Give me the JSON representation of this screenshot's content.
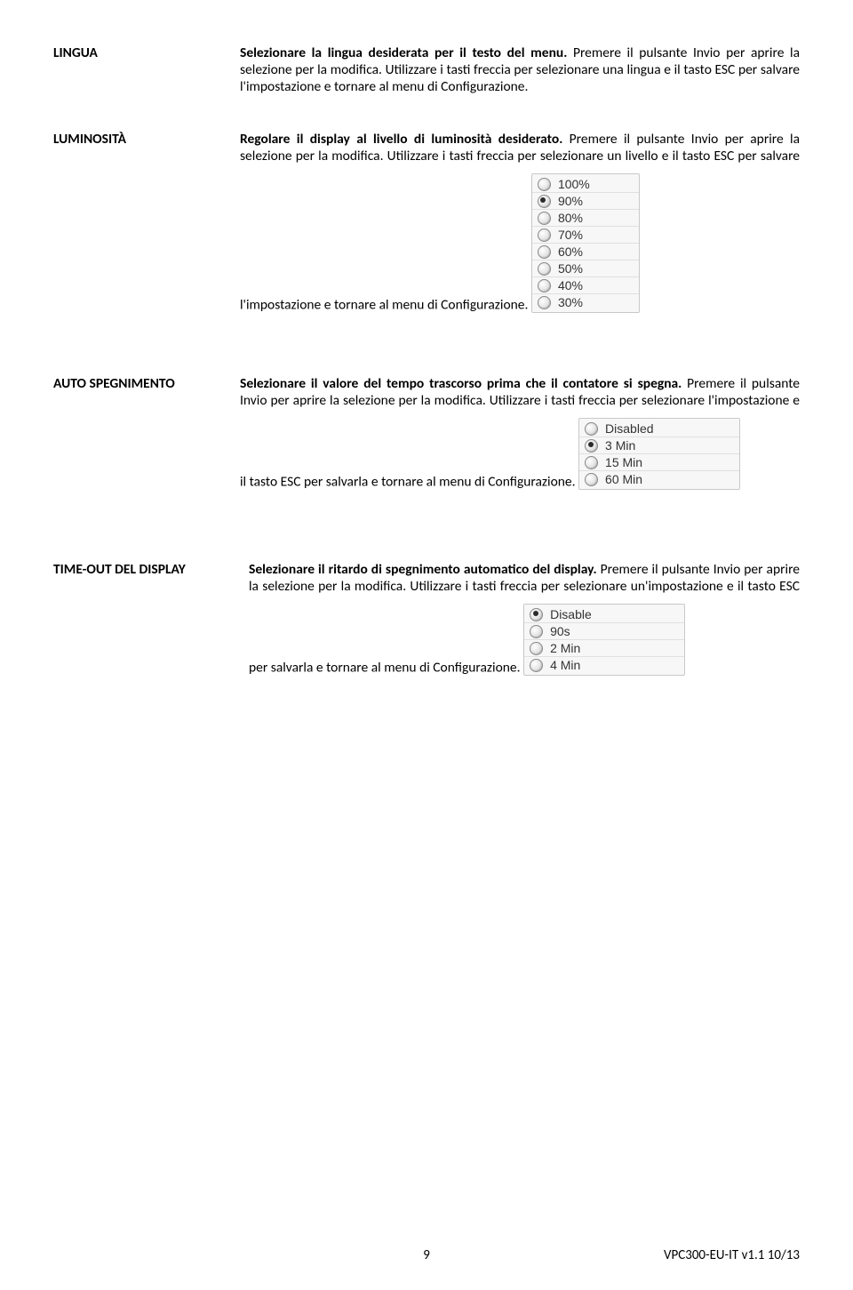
{
  "lingua": {
    "label": "LINGUA",
    "lead": "Selezionare la lingua desiderata per il testo del menu.",
    "rest": " Premere il pulsante Invio per aprire la selezione per la modifica. Utilizzare i tasti freccia per selezionare una lingua e il tasto ESC per salvare l'impostazione e tornare al menu di Configurazione."
  },
  "luminosita": {
    "label": "LUMINOSITÀ",
    "lead": "Regolare il display al livello di luminosità desiderato.",
    "rest": " Premere il pulsante Invio per aprire la selezione per la modifica. Utilizzare i tasti freccia per selezionare un livello e il tasto ESC per salvare l'impostazione e tornare al menu di Configurazione.",
    "options": [
      {
        "label": "100%",
        "selected": false
      },
      {
        "label": "90%",
        "selected": true
      },
      {
        "label": "80%",
        "selected": false
      },
      {
        "label": "70%",
        "selected": false
      },
      {
        "label": "60%",
        "selected": false
      },
      {
        "label": "50%",
        "selected": false
      },
      {
        "label": "40%",
        "selected": false
      },
      {
        "label": "30%",
        "selected": false
      }
    ]
  },
  "auto_spegnimento": {
    "label": "AUTO SPEGNIMENTO",
    "lead": "Selezionare il valore del tempo trascorso prima che il contatore si spegna.",
    "rest": " Premere il pulsante Invio per aprire la selezione per la modifica. Utilizzare i tasti freccia per selezionare l'impostazione e il tasto ESC per salvarla e tornare al menu di Configurazione.",
    "options": [
      {
        "label": "Disabled",
        "selected": false
      },
      {
        "label": "3 Min",
        "selected": true
      },
      {
        "label": "15 Min",
        "selected": false
      },
      {
        "label": "60 Min",
        "selected": false
      }
    ]
  },
  "timeout_display": {
    "label": "TIME-OUT DEL DISPLAY",
    "lead": "Selezionare il ritardo di spegnimento automatico del display.",
    "rest": " Premere il pulsante Invio per aprire la selezione per la modifica. Utilizzare i tasti freccia per selezionare un'impostazione e il tasto ESC per salvarla e tornare al menu di Configurazione.",
    "options": [
      {
        "label": "Disable",
        "selected": true
      },
      {
        "label": "90s",
        "selected": false
      },
      {
        "label": "2 Min",
        "selected": false
      },
      {
        "label": "4 Min",
        "selected": false
      }
    ]
  },
  "footer": {
    "page": "9",
    "doc": "VPC300-EU-IT v1.1   10/13"
  }
}
